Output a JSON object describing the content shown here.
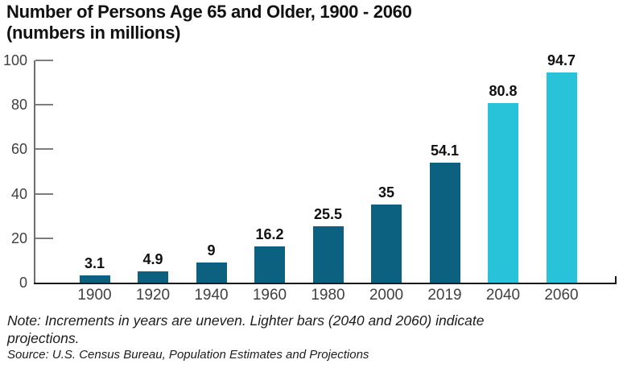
{
  "title": {
    "line1": "Number of Persons Age 65 and Older, 1900 - 2060",
    "line2": "(numbers in millions)"
  },
  "chart_data": {
    "type": "bar",
    "title": "Number of Persons Age 65 and Older, 1900 - 2060 (numbers in millions)",
    "categories": [
      "1900",
      "1920",
      "1940",
      "1960",
      "1980",
      "2000",
      "2019",
      "2040",
      "2060"
    ],
    "values": [
      3.1,
      4.9,
      9,
      16.2,
      25.5,
      35,
      54.1,
      80.8,
      94.7
    ],
    "value_labels": [
      "3.1",
      "4.9",
      "9",
      "16.2",
      "25.5",
      "35",
      "54.1",
      "80.8",
      "94.7"
    ],
    "projected": [
      false,
      false,
      false,
      false,
      false,
      false,
      false,
      true,
      true
    ],
    "y_ticks": [
      0,
      20,
      40,
      60,
      80,
      100
    ],
    "ylim": [
      0,
      100
    ],
    "xlabel": "",
    "ylabel": "",
    "grid": false,
    "legend_position": "none",
    "colors": {
      "historical_bar": "#0d6180",
      "projected_bar": "#29c3d9",
      "y_axis": "#6d6e71",
      "x_axis": "#1a1a1a"
    }
  },
  "note": {
    "line1": "Note: Increments in years are uneven. Lighter bars (2040 and 2060) indicate",
    "line2": "projections."
  },
  "source": "Source: U.S. Census Bureau, Population Estimates and Projections"
}
